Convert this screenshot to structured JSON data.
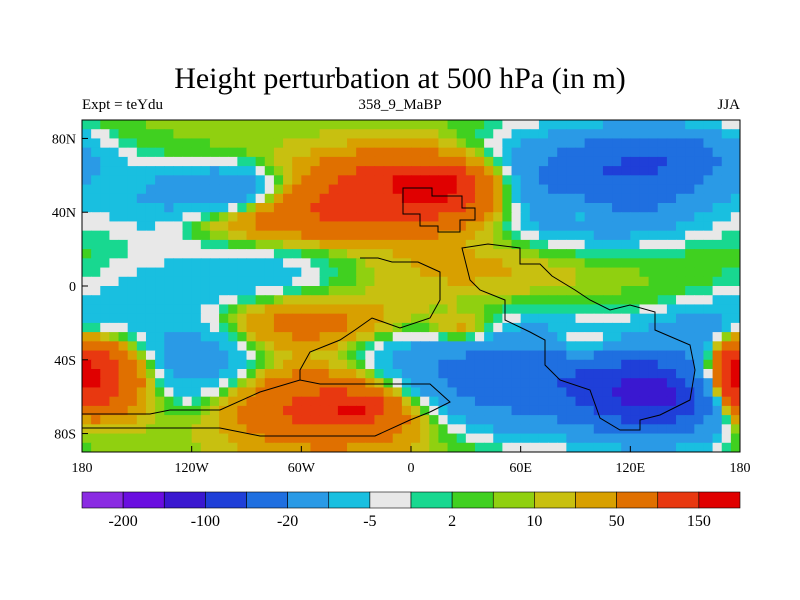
{
  "chart_data": {
    "type": "heatmap",
    "title": "Height perturbation at 500 hPa (in m)",
    "subtitle_left": "Expt = teYdu",
    "subtitle_center": "358_9_MaBP",
    "subtitle_right": "JJA",
    "x_ticks": [
      "180",
      "120W",
      "60W",
      "0",
      "60E",
      "120E",
      "180"
    ],
    "y_ticks": [
      "80N",
      "40N",
      "0",
      "40S",
      "80S"
    ],
    "xlim": [
      -180,
      180
    ],
    "ylim": [
      -90,
      90
    ],
    "colorbar_labels": [
      "-200",
      "-100",
      "-20",
      "-5",
      "2",
      "10",
      "50",
      "150"
    ],
    "colors": [
      "#8a2be2",
      "#6a0ee0",
      "#3a18d0",
      "#1f3fd8",
      "#1f6fe0",
      "#2a9ae6",
      "#19bfe0",
      "#e8e8e8",
      "#18d890",
      "#40d020",
      "#90d010",
      "#c8c010",
      "#d8a000",
      "#e07000",
      "#e83810",
      "#e00000"
    ],
    "blobs": [
      {
        "lon": 5,
        "lat": 52,
        "rx": 55,
        "ry": 18,
        "v": 95
      },
      {
        "lon": 12,
        "lat": 55,
        "rx": 18,
        "ry": 8,
        "v": 60
      },
      {
        "lon": -60,
        "lat": 38,
        "rx": 55,
        "ry": 14,
        "v": 30
      },
      {
        "lon": -100,
        "lat": 52,
        "rx": 30,
        "ry": 12,
        "v": -50
      },
      {
        "lon": -140,
        "lat": 45,
        "rx": 30,
        "ry": 20,
        "v": -20
      },
      {
        "lon": 100,
        "lat": 55,
        "rx": 60,
        "ry": 25,
        "v": -90
      },
      {
        "lon": 140,
        "lat": 70,
        "rx": 40,
        "ry": 15,
        "v": -60
      },
      {
        "lon": 95,
        "lat": 42,
        "rx": 15,
        "ry": 8,
        "v": 40
      },
      {
        "lon": 30,
        "lat": 10,
        "rx": 70,
        "ry": 18,
        "v": 10
      },
      {
        "lon": -90,
        "lat": 5,
        "rx": 60,
        "ry": 20,
        "v": -20
      },
      {
        "lon": -160,
        "lat": -10,
        "rx": 40,
        "ry": 20,
        "v": -10
      },
      {
        "lon": -175,
        "lat": -50,
        "rx": 30,
        "ry": 20,
        "v": 90
      },
      {
        "lon": -120,
        "lat": -40,
        "rx": 35,
        "ry": 25,
        "v": -40
      },
      {
        "lon": -60,
        "lat": -20,
        "rx": 55,
        "ry": 15,
        "v": 30
      },
      {
        "lon": -40,
        "lat": -65,
        "rx": 55,
        "ry": 20,
        "v": 70
      },
      {
        "lon": -30,
        "lat": -66,
        "rx": 15,
        "ry": 6,
        "v": 60
      },
      {
        "lon": 30,
        "lat": -25,
        "rx": 20,
        "ry": 10,
        "v": 30
      },
      {
        "lon": 60,
        "lat": -50,
        "rx": 80,
        "ry": 25,
        "v": -90
      },
      {
        "lon": 135,
        "lat": -60,
        "rx": 40,
        "ry": 20,
        "v": -150
      },
      {
        "lon": 95,
        "lat": -32,
        "rx": 20,
        "ry": 8,
        "v": 40
      },
      {
        "lon": 178,
        "lat": -50,
        "rx": 14,
        "ry": 20,
        "v": 80
      },
      {
        "lon": 165,
        "lat": -25,
        "rx": 30,
        "ry": 15,
        "v": -30
      }
    ]
  }
}
